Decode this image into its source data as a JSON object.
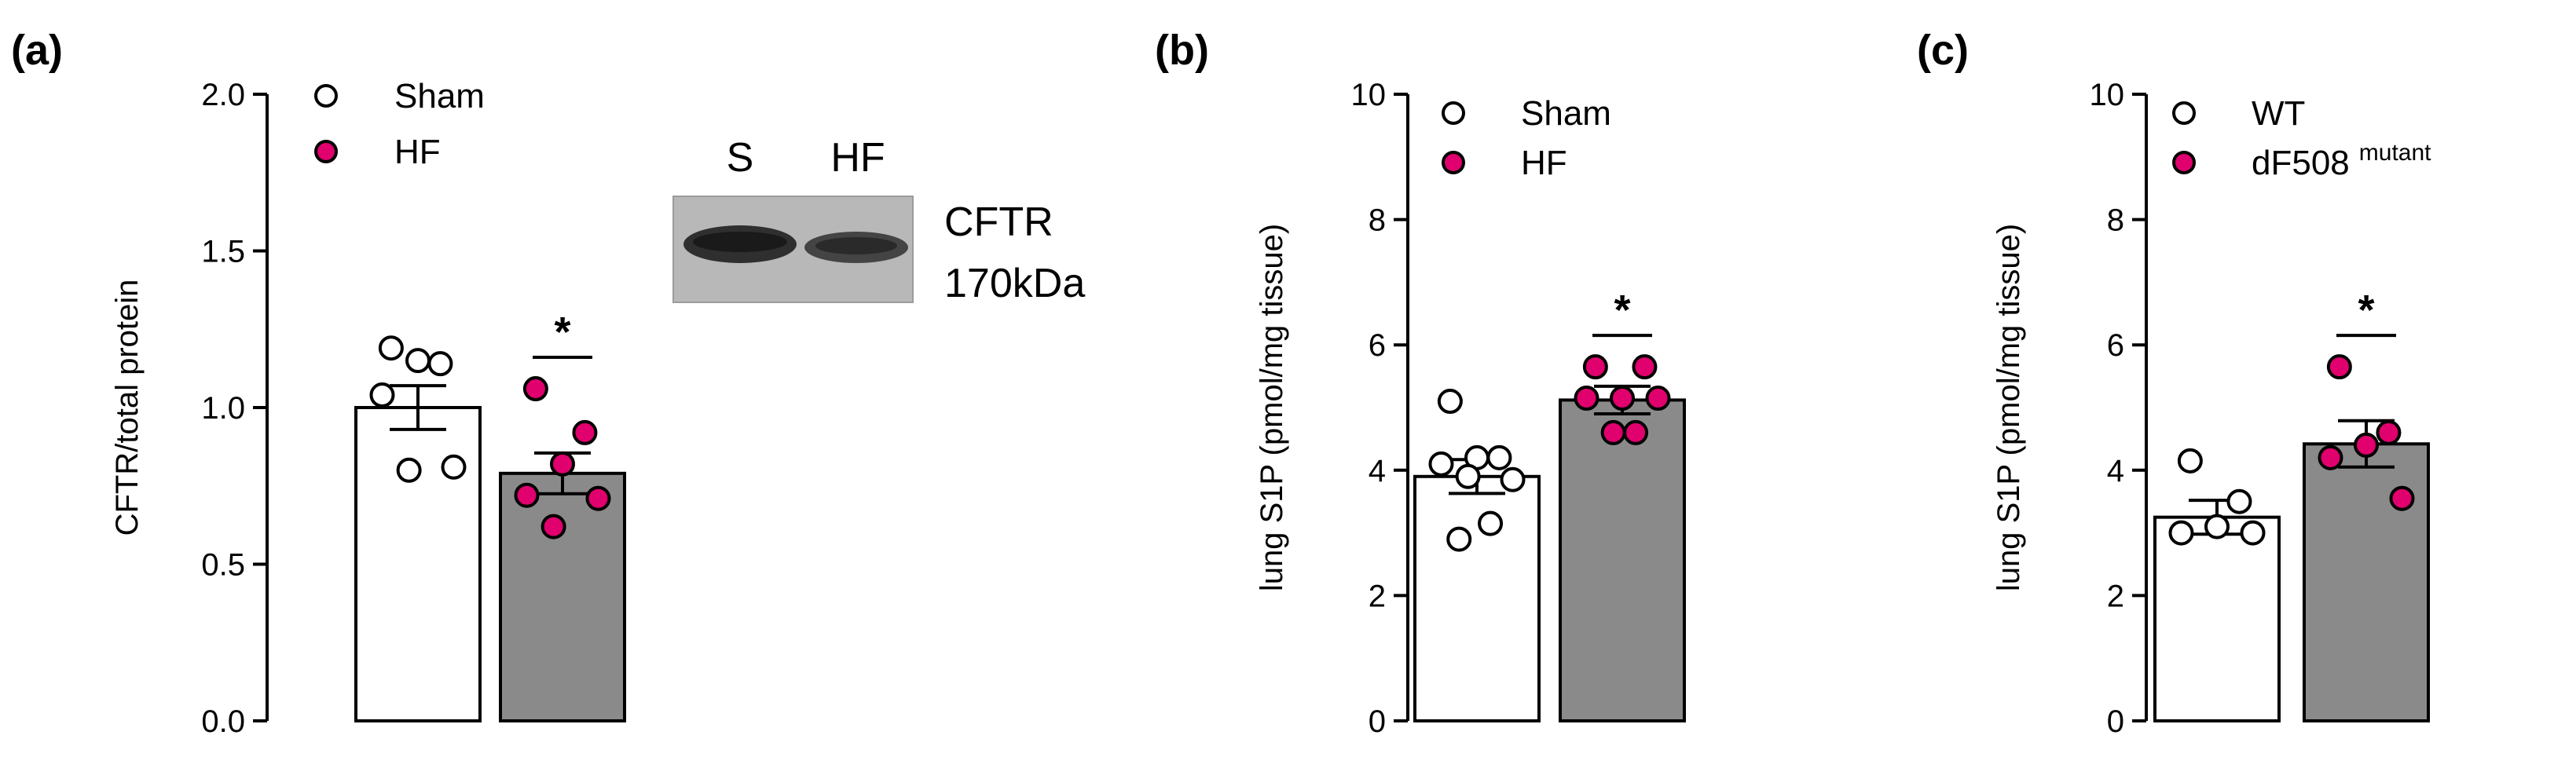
{
  "colors": {
    "control_fill": "#ffffff",
    "treated_fill": "#8a8a8a",
    "control_point_fill": "#ffffff",
    "control_point_stroke": "#000000",
    "treated_point_fill": "#e0006e",
    "treated_point_stroke": "#000000"
  },
  "blot": {
    "lane_labels": [
      "S",
      "HF"
    ],
    "protein_name": "CFTR",
    "protein_size": "170kDa"
  },
  "chart_data": [
    {
      "panel": "(a)",
      "type": "bar",
      "ylabel": "CFTR/total protein",
      "ylim": [
        0,
        2.0
      ],
      "yticks": [
        0.0,
        0.5,
        1.0,
        1.5,
        2.0
      ],
      "ytick_labels": [
        "0.0",
        "0.5",
        "1.0",
        "1.5",
        "2.0"
      ],
      "legend": [
        {
          "label": "Sham",
          "style": "open"
        },
        {
          "label": "HF",
          "style": "filled"
        }
      ],
      "significance": "*",
      "series": [
        {
          "name": "Sham",
          "style": "open",
          "mean": 1.0,
          "sem": 0.07,
          "points": [
            1.19,
            1.14,
            1.15,
            1.04,
            0.81,
            0.8
          ]
        },
        {
          "name": "HF",
          "style": "filled",
          "mean": 0.79,
          "sem": 0.065,
          "points": [
            1.06,
            0.92,
            0.82,
            0.72,
            0.71,
            0.62
          ]
        }
      ]
    },
    {
      "panel": "(b)",
      "type": "bar",
      "ylabel": "lung S1P (pmol/mg tissue)",
      "ylim": [
        0,
        10
      ],
      "yticks": [
        0,
        2,
        4,
        6,
        8,
        10
      ],
      "ytick_labels": [
        "0",
        "2",
        "4",
        "6",
        "8",
        "10"
      ],
      "legend": [
        {
          "label": "Sham",
          "style": "open"
        },
        {
          "label": "HF",
          "style": "filled"
        }
      ],
      "significance": "*",
      "series": [
        {
          "name": "Sham",
          "style": "open",
          "mean": 3.9,
          "sem": 0.27,
          "points": [
            5.1,
            4.2,
            4.2,
            4.1,
            3.85,
            3.9,
            3.15,
            2.9
          ]
        },
        {
          "name": "HF",
          "style": "filled",
          "mean": 5.12,
          "sem": 0.22,
          "points": [
            5.65,
            5.65,
            5.15,
            5.15,
            5.15,
            4.6,
            4.6
          ]
        }
      ]
    },
    {
      "panel": "(c)",
      "type": "bar",
      "ylabel": "lung S1P (pmol/mg tissue)",
      "ylim": [
        0,
        10
      ],
      "yticks": [
        0,
        2,
        4,
        6,
        8,
        10
      ],
      "ytick_labels": [
        "0",
        "2",
        "4",
        "6",
        "8",
        "10"
      ],
      "legend": [
        {
          "label": "WT",
          "style": "open"
        },
        {
          "label": "dF508",
          "sup": "mutant",
          "style": "filled"
        }
      ],
      "significance": "*",
      "series": [
        {
          "name": "WT",
          "style": "open",
          "mean": 3.25,
          "sem": 0.27,
          "points": [
            4.15,
            3.5,
            3.1,
            3.0,
            3.0
          ]
        },
        {
          "name": "dF508 mutant",
          "style": "filled",
          "mean": 4.42,
          "sem": 0.37,
          "points": [
            5.65,
            4.6,
            4.4,
            4.2,
            3.55
          ]
        }
      ]
    }
  ]
}
